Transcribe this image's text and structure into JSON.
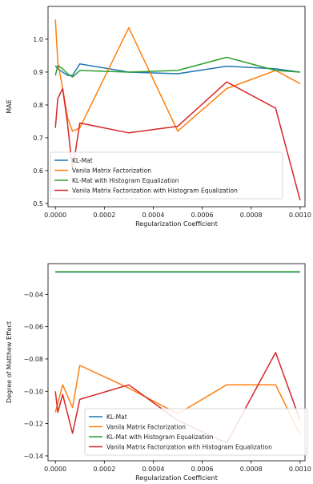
{
  "chart_data": [
    {
      "type": "line",
      "title": "",
      "xlabel": "Regularization Coefficient",
      "ylabel": "MAE",
      "xlim": [
        -3e-05,
        0.00102
      ],
      "ylim": [
        0.49,
        1.1
      ],
      "xticks": [
        0.0,
        0.0002,
        0.0004,
        0.0006,
        0.0008,
        0.001
      ],
      "xtick_labels": [
        "0.0000",
        "0.0002",
        "0.0004",
        "0.0006",
        "0.0008",
        "0.0010"
      ],
      "yticks": [
        0.5,
        0.6,
        0.7,
        0.8,
        0.9,
        1.0
      ],
      "ytick_labels": [
        "0.5",
        "0.6",
        "0.7",
        "0.8",
        "0.9",
        "1.0"
      ],
      "grid": false,
      "legend_position": "bottom-left",
      "series": [
        {
          "name": "KL-Mat",
          "color": "#1f77b4",
          "x": [
            0.0,
            1e-05,
            3e-05,
            5e-05,
            7e-05,
            0.0001,
            0.0003,
            0.0005,
            0.0007,
            0.0009,
            0.001
          ],
          "y": [
            0.92,
            0.91,
            0.9,
            0.89,
            0.89,
            0.925,
            0.9,
            0.895,
            0.918,
            0.91,
            0.9
          ]
        },
        {
          "name": "Vanila Matrix Factorization",
          "color": "#ff7f0e",
          "x": [
            0.0,
            1e-05,
            3e-05,
            5e-05,
            7e-05,
            0.0001,
            0.0003,
            0.0005,
            0.0007,
            0.0009,
            0.001
          ],
          "y": [
            1.06,
            0.93,
            0.85,
            0.76,
            0.72,
            0.73,
            1.035,
            0.72,
            0.85,
            0.905,
            0.865
          ]
        },
        {
          "name": "KL-Mat with Histogram Equalization",
          "color": "#2ca02c",
          "x": [
            0.0,
            1e-05,
            3e-05,
            5e-05,
            7e-05,
            0.0001,
            0.0003,
            0.0005,
            0.0007,
            0.0009,
            0.001
          ],
          "y": [
            0.89,
            0.92,
            0.91,
            0.895,
            0.885,
            0.905,
            0.9,
            0.905,
            0.945,
            0.905,
            0.9
          ]
        },
        {
          "name": "Vanila Matrix Factorization with Histogram Equalization",
          "color": "#d62728",
          "x": [
            0.0,
            1e-05,
            3e-05,
            5e-05,
            7e-05,
            0.0001,
            0.0003,
            0.0005,
            0.0007,
            0.0009,
            0.001
          ],
          "y": [
            0.73,
            0.82,
            0.85,
            0.74,
            0.6,
            0.745,
            0.715,
            0.735,
            0.87,
            0.79,
            0.51
          ]
        }
      ]
    },
    {
      "type": "line",
      "title": "",
      "xlabel": "Regularization Coefficient",
      "ylabel": "Degree of Matthew Effect",
      "xlim": [
        -3e-05,
        0.00102
      ],
      "ylim": [
        -0.143,
        -0.021
      ],
      "xticks": [
        0.0,
        0.0002,
        0.0004,
        0.0006,
        0.0008,
        0.001
      ],
      "xtick_labels": [
        "0.0000",
        "0.0002",
        "0.0004",
        "0.0006",
        "0.0008",
        "0.0010"
      ],
      "yticks": [
        -0.14,
        -0.12,
        -0.1,
        -0.08,
        -0.06,
        -0.04
      ],
      "ytick_labels": [
        "−0.14",
        "−0.12",
        "−0.10",
        "−0.08",
        "−0.06",
        "−0.04"
      ],
      "grid": false,
      "legend_position": "bottom-center",
      "series": [
        {
          "name": "KL-Mat",
          "color": "#1f77b4",
          "x": [
            0.0,
            0.001
          ],
          "y": [
            -0.0262,
            -0.0262
          ]
        },
        {
          "name": "Vanila Matrix Factorization",
          "color": "#ff7f0e",
          "x": [
            0.0,
            3e-05,
            7e-05,
            0.0001,
            0.0003,
            0.0005,
            0.0007,
            0.0009,
            0.001
          ],
          "y": [
            -0.113,
            -0.096,
            -0.11,
            -0.084,
            -0.098,
            -0.114,
            -0.096,
            -0.096,
            -0.127
          ]
        },
        {
          "name": "KL-Mat with Histogram Equalization",
          "color": "#2ca02c",
          "x": [
            0.0,
            0.001
          ],
          "y": [
            -0.026,
            -0.026
          ]
        },
        {
          "name": "Vanila Matrix Factorization with Histogram Equalization",
          "color": "#d62728",
          "x": [
            0.0,
            1e-05,
            3e-05,
            7e-05,
            0.0001,
            0.0003,
            0.0005,
            0.0007,
            0.0009,
            0.001
          ],
          "y": [
            -0.1,
            -0.113,
            -0.102,
            -0.126,
            -0.105,
            -0.096,
            -0.118,
            -0.132,
            -0.076,
            -0.118
          ]
        }
      ]
    }
  ]
}
